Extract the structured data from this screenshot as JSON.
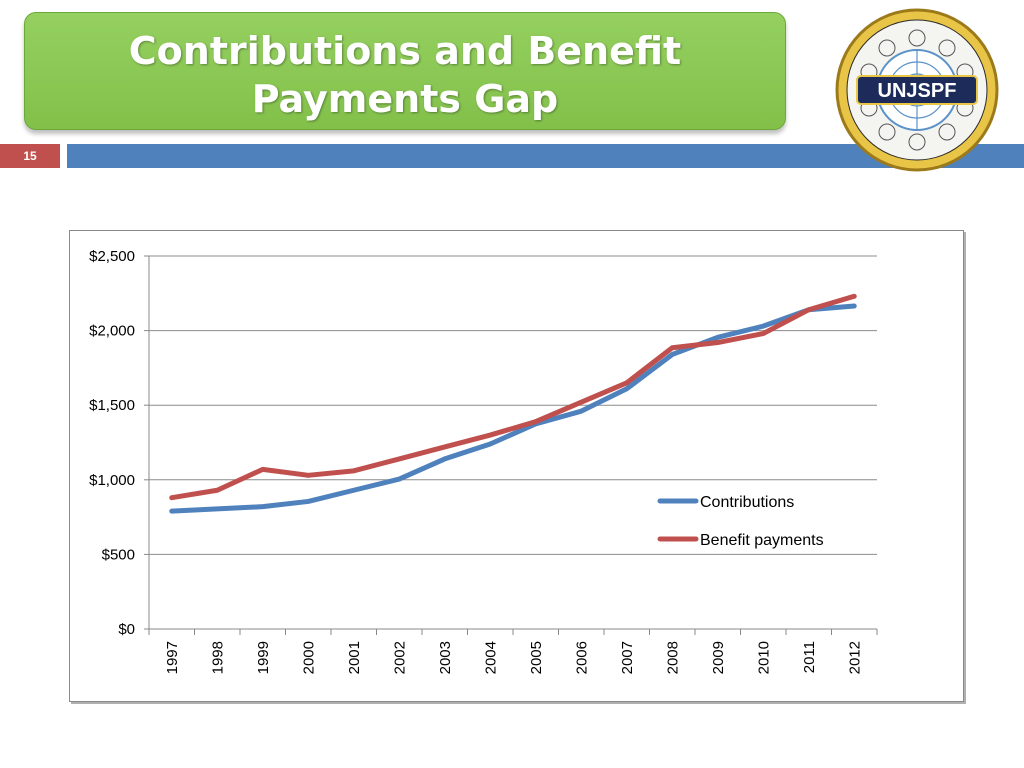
{
  "slide": {
    "title": "Contributions and Benefit Payments Gap",
    "page_number": "15",
    "logo_text": "UNJSPF"
  },
  "colors": {
    "title_green": "#8cc850",
    "bar_blue": "#4f81bd",
    "page_red": "#c0504d",
    "contributions": "#4f81bd",
    "benefits": "#c0504d"
  },
  "chart_data": {
    "type": "line",
    "x": [
      "1997",
      "1998",
      "1999",
      "2000",
      "2001",
      "2002",
      "2003",
      "2004",
      "2005",
      "2006",
      "2007",
      "2008",
      "2009",
      "2010",
      "2011",
      "2012"
    ],
    "ylim": [
      0,
      2500
    ],
    "ytick_labels": [
      "$0",
      "$500",
      "$1,000",
      "$1,500",
      "$2,000",
      "$2,500"
    ],
    "grid": true,
    "legend_position": "right",
    "series": [
      {
        "name": "Contributions",
        "color": "#4f81bd",
        "values": [
          790,
          805,
          820,
          855,
          930,
          1005,
          1140,
          1240,
          1375,
          1460,
          1610,
          1840,
          1955,
          2030,
          2140,
          2165
        ]
      },
      {
        "name": "Benefit payments",
        "color": "#c0504d",
        "values": [
          880,
          930,
          1070,
          1030,
          1060,
          1140,
          1220,
          1300,
          1390,
          1520,
          1650,
          1885,
          1920,
          1980,
          2140,
          2230
        ]
      }
    ]
  }
}
